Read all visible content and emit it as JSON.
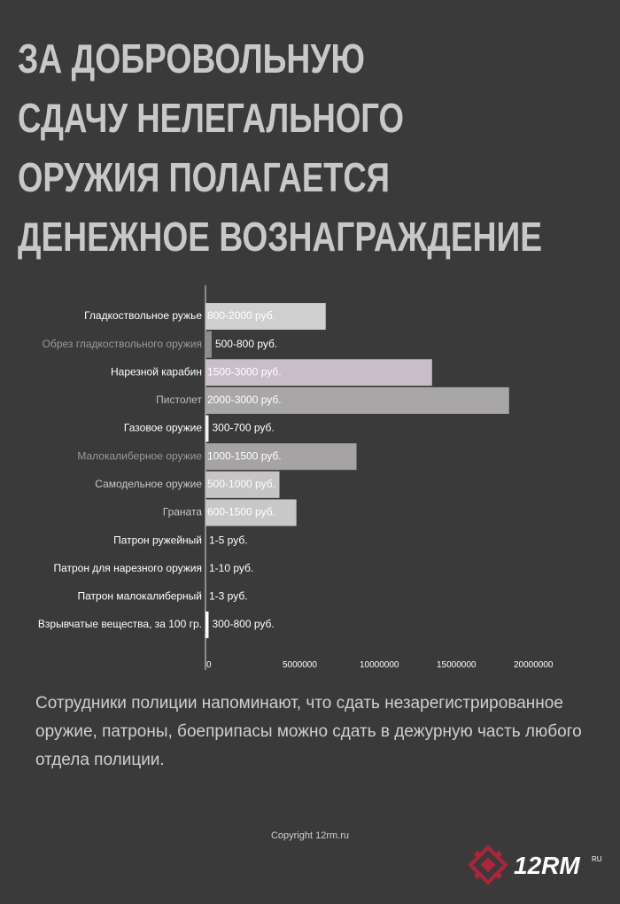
{
  "chart_data": {
    "type": "bar",
    "orientation": "horizontal",
    "title_lines": [
      "ЗА ДОБРОВОЛЬНУЮ",
      "СДАЧУ НЕЛЕГАЛЬНОГО",
      "ОРУЖИЯ ПОЛАГАЕТСЯ",
      "ДЕНЕЖНОЕ ВОЗНАГРАЖДЕНИЕ"
    ],
    "categories": [
      "Гладкоствольное ружье",
      "Обрез гладкоствольного оружия",
      "Нарезной карабин",
      "Пистолет",
      "Газовое оружие",
      "Малокалиберное оружие",
      "Самодельное оружие",
      "Граната",
      "Патрон ружейный",
      "Патрон для нарезного оружия",
      "Патрон малокалиберный",
      "Взрывчатые вещества, за 100 гр."
    ],
    "values": [
      7800000,
      400000,
      14700000,
      19700000,
      200000,
      9800000,
      4800000,
      5900000,
      0,
      0,
      0,
      200000
    ],
    "price_ranges": [
      "800-2000 руб.",
      "500-800 руб.",
      "1500-3000 руб.",
      "2000-3000 руб.",
      "300-700 руб.",
      "1000-1500 руб.",
      "500-1000 руб.",
      "600-1500 руб.",
      "1-5 руб.",
      "1-10 руб.",
      "1-3 руб.",
      "300-800 руб."
    ],
    "colors": [
      "#cfcfcf",
      "#8e8e8e",
      "#c9bdc9",
      "#a9a6a8",
      "#f2f2f2",
      "#a6a3a5",
      "#c6c4c6",
      "#c9c7c9",
      "#ffffff",
      "#ffffff",
      "#ffffff",
      "#ffffff"
    ],
    "label_colors": [
      "#ffffff",
      "#9a9a9a",
      "#ffffff",
      "#bdbdbd",
      "#ffffff",
      "#9a9a9a",
      "#c8c8c8",
      "#c8c8c8",
      "#ffffff",
      "#ffffff",
      "#ffffff",
      "#ffffff"
    ],
    "xlim": [
      0,
      22000000
    ],
    "xticks": [
      0,
      5000000,
      10000000,
      15000000,
      20000000
    ]
  },
  "note": "Сотрудники полиции напоминают, что сдать незарегистрированное оружие, патроны, боеприпасы можно сдать в дежурную часть любого отдела полиции.",
  "copyright": "Copyright 12rm.ru",
  "logo": {
    "text": "12RM",
    "suffix": "RU"
  }
}
